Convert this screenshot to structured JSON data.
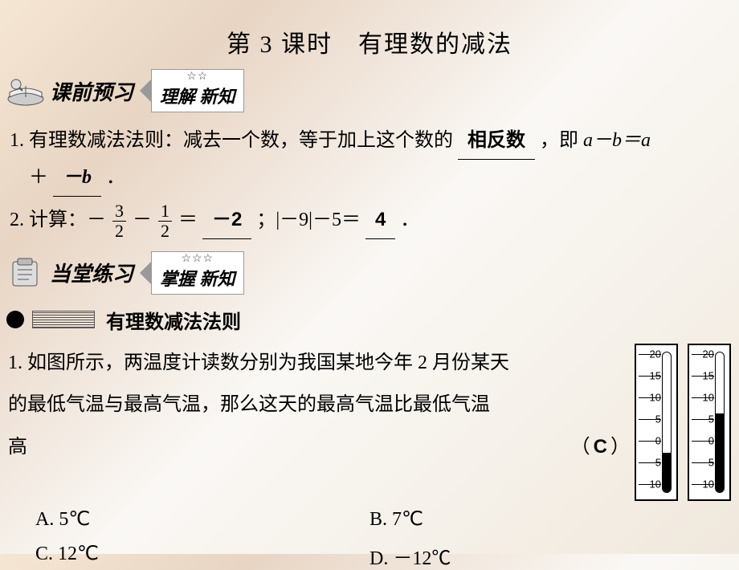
{
  "title": "第 3 课时　有理数的减法",
  "section1": {
    "icon": "book-icon",
    "label": "课前预习",
    "stars": "☆☆",
    "box_text": "理解 新知"
  },
  "q1": {
    "prefix": "1. 有理数减法法则：减去一个数，等于加上这个数的",
    "blank1": "相反数",
    "mid": "，即 ",
    "expr_lhs": "a－b＝a",
    "line2_prefix": "　＋",
    "blank2": "－b",
    "period": "．"
  },
  "q2": {
    "prefix": "2. 计算：－",
    "frac1_num": "3",
    "frac1_den": "2",
    "minus": "－",
    "frac2_num": "1",
    "frac2_den": "2",
    "eq": "＝",
    "blank1": "－2",
    "sep": "；|－9|－5＝",
    "blank2": "4",
    "period": "．"
  },
  "section2": {
    "icon": "clipboard-icon",
    "label": "当堂练习",
    "stars": "☆☆☆",
    "box_text": "掌握 新知"
  },
  "knowledge_point": "有理数减法法则",
  "q3": {
    "line1": "1. 如图所示，两温度计读数分别为我国某地今年 2 月份某天",
    "line2": "的最低气温与最高气温，那么这天的最高气温比最低气温",
    "line3": "高",
    "answer": "C",
    "options": {
      "A": "A. 5℃",
      "B": "B. 7℃",
      "C": "C. 12℃",
      "D": "D. －12℃"
    }
  },
  "thermometers": {
    "scale_labels": [
      "20",
      "15",
      "10",
      "5",
      "0",
      "5",
      "10"
    ],
    "scale_positions_pct": [
      3,
      18,
      33,
      48,
      63,
      78,
      93
    ],
    "fill1_pct": 28,
    "fill2_pct": 56
  },
  "colors": {
    "text": "#000000",
    "border": "#999999",
    "bg": "#faf8f5"
  }
}
